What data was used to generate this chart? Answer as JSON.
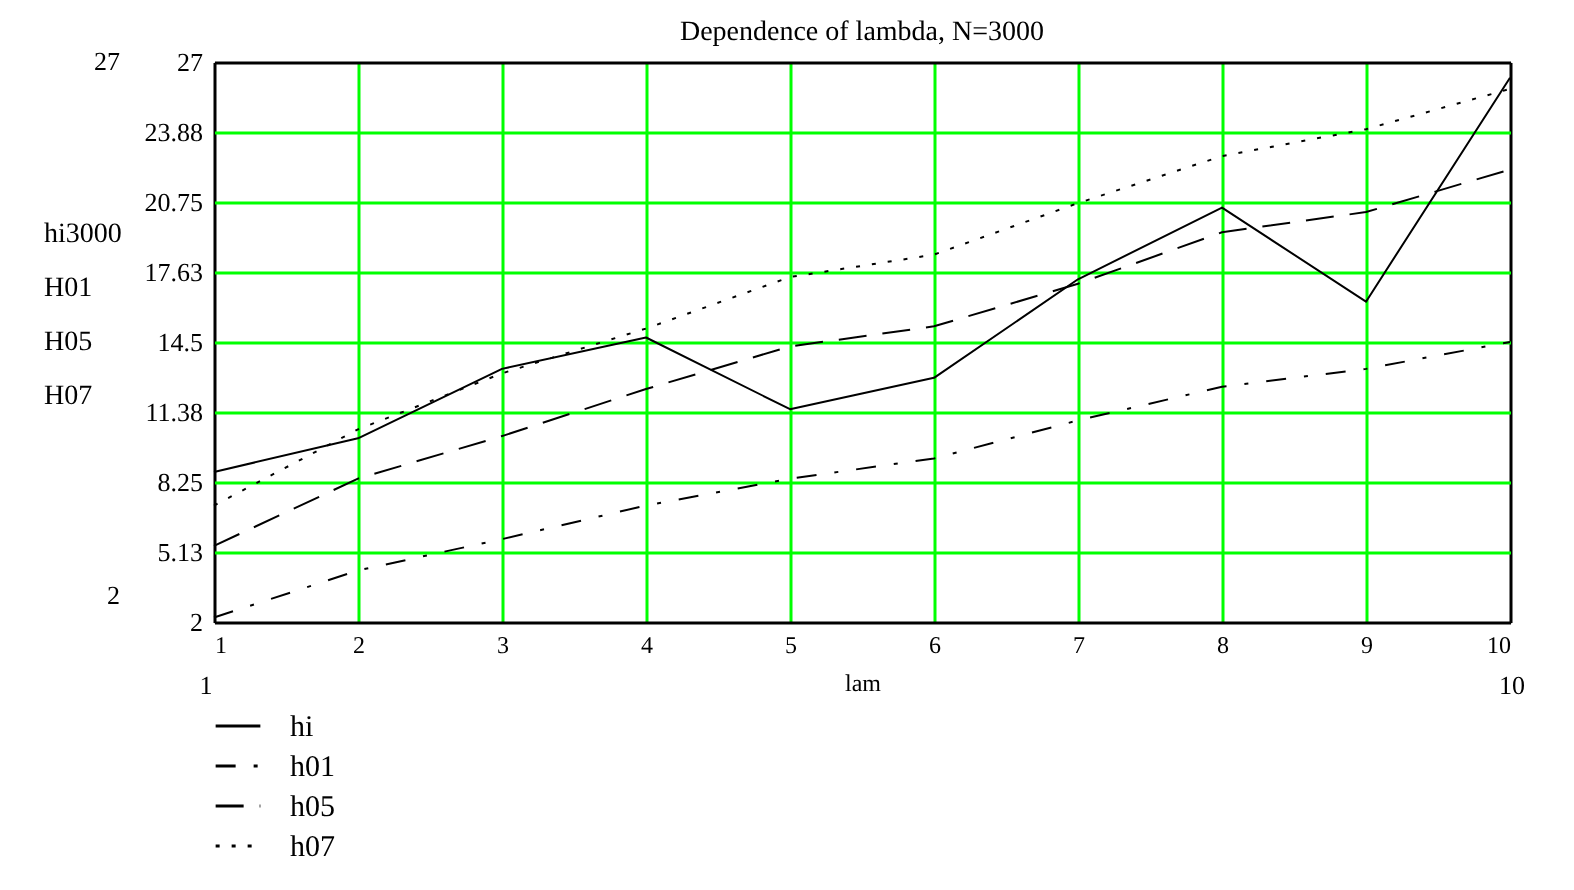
{
  "chart_data": {
    "type": "line",
    "title": "Dependence of lambda, N=3000",
    "xlabel": "lam",
    "ylabel": "hi3000\nH01\nH05\nH07",
    "x": [
      1,
      2,
      3,
      4,
      5,
      6,
      7,
      8,
      9,
      10
    ],
    "series": [
      {
        "name": "hi",
        "color": "#000000",
        "line_style": "solid",
        "values": [
          8.7,
          10.2,
          13.3,
          14.7,
          11.5,
          12.9,
          17.3,
          20.5,
          16.3,
          26.3
        ]
      },
      {
        "name": "h01",
        "color": "#000000",
        "line_style": "dashdot",
        "values": [
          2.2,
          4.3,
          5.7,
          7.2,
          8.4,
          9.3,
          11.0,
          12.5,
          13.3,
          14.5
        ]
      },
      {
        "name": "h05",
        "color": "#000000",
        "line_style": "dashed",
        "values": [
          5.4,
          8.4,
          10.3,
          12.4,
          14.3,
          15.2,
          17.1,
          19.4,
          20.3,
          22.2
        ]
      },
      {
        "name": "h07",
        "color": "#000000",
        "line_style": "dotted",
        "values": [
          7.2,
          10.6,
          13.1,
          15.1,
          17.4,
          18.4,
          20.7,
          22.8,
          24.0,
          25.8
        ]
      }
    ],
    "xlim": [
      1,
      10
    ],
    "xticks": [
      1,
      2,
      3,
      4,
      5,
      6,
      7,
      8,
      9,
      10
    ],
    "ylim": [
      2,
      27
    ],
    "yticks": [
      2,
      {
        "value": 5.125,
        "label": "5.13"
      },
      8.25,
      {
        "value": 11.375,
        "label": "11.38"
      },
      14.5,
      {
        "value": 17.625,
        "label": "17.63"
      },
      20.75,
      {
        "value": 23.875,
        "label": "23.88"
      },
      27
    ],
    "annotations": [
      "27",
      "2",
      "1",
      "10"
    ],
    "grid": true,
    "legend": "bottom left"
  }
}
